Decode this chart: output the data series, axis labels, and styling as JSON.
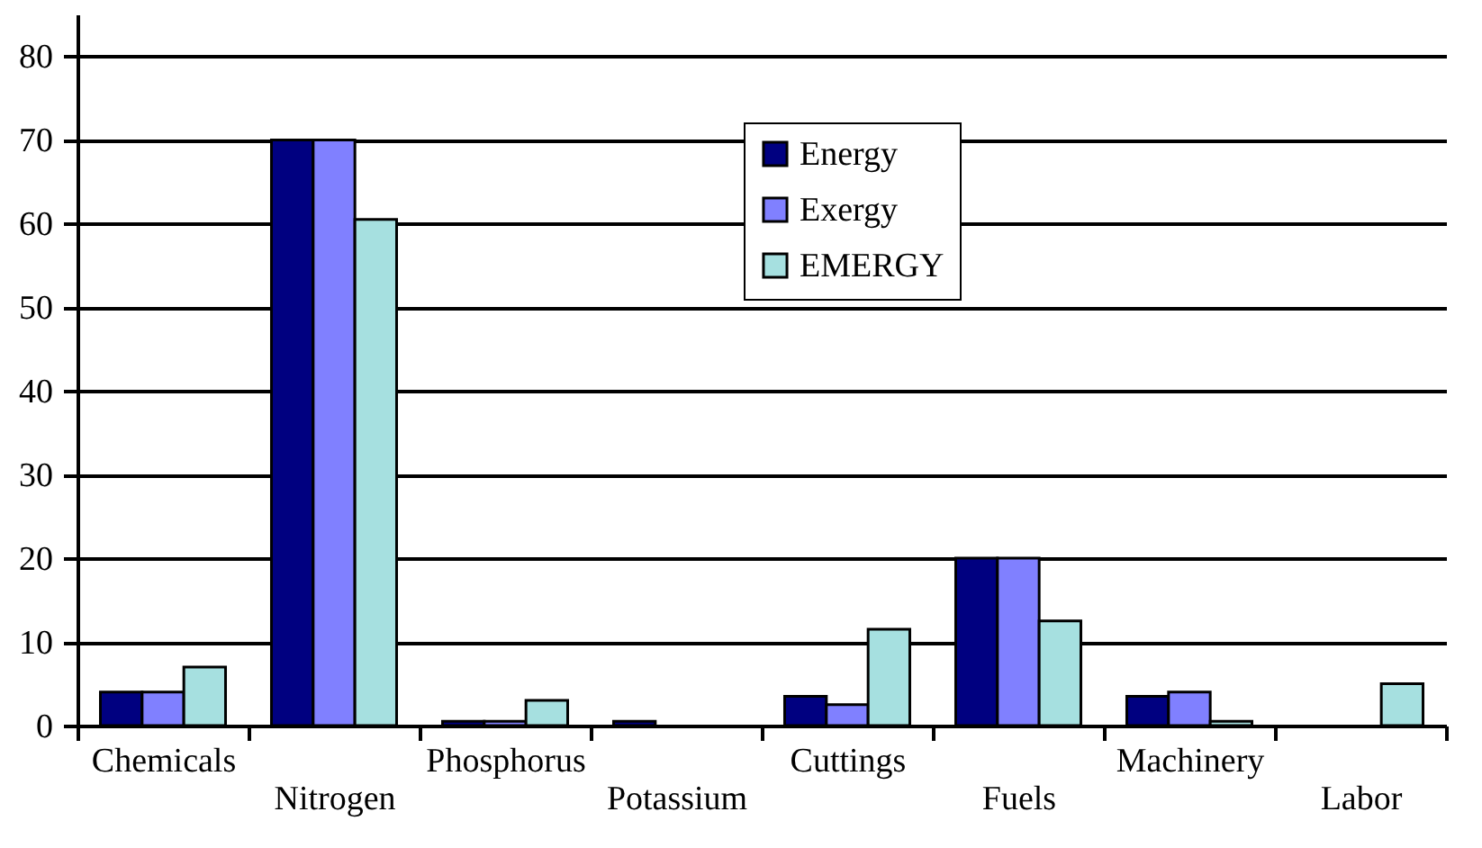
{
  "chart_data": {
    "type": "bar",
    "categories": [
      "Chemicals",
      "Nitrogen",
      "Phosphorus",
      "Potassium",
      "Cuttings",
      "Fuels",
      "Machinery",
      "Labor"
    ],
    "series": [
      {
        "name": "Energy",
        "color": "#000080",
        "values": [
          4,
          70,
          0.5,
          0.5,
          3.5,
          20,
          3.5,
          null
        ]
      },
      {
        "name": "Exergy",
        "color": "#8080ff",
        "values": [
          4,
          70,
          0.5,
          null,
          2.5,
          20,
          4,
          null
        ]
      },
      {
        "name": "EMERGY",
        "color": "#a6e0e0",
        "values": [
          7,
          60.5,
          3,
          null,
          11.5,
          12.5,
          0.5,
          5
        ]
      }
    ],
    "ylim": [
      0,
      85
    ],
    "yticks": [
      0,
      10,
      20,
      30,
      40,
      50,
      60,
      70,
      80
    ],
    "grid": "y",
    "legend": "top"
  }
}
